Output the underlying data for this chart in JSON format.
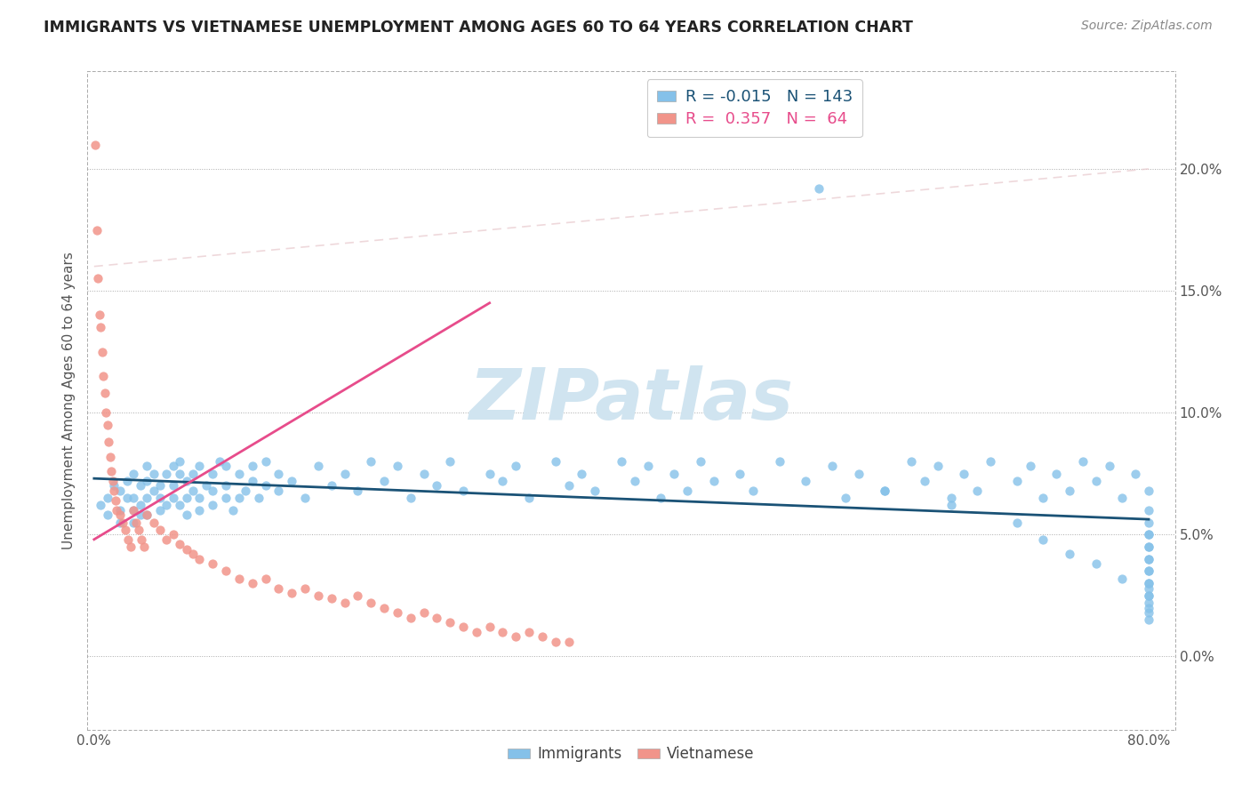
{
  "title": "IMMIGRANTS VS VIETNAMESE UNEMPLOYMENT AMONG AGES 60 TO 64 YEARS CORRELATION CHART",
  "source_text": "Source: ZipAtlas.com",
  "ylabel": "Unemployment Among Ages 60 to 64 years",
  "legend_R_immigrants": "-0.015",
  "legend_N_immigrants": "143",
  "legend_R_vietnamese": "0.357",
  "legend_N_vietnamese": "64",
  "immigrants_color": "#85c1e9",
  "vietnamese_color": "#f1948a",
  "immigrants_line_color": "#1a5276",
  "vietnamese_line_color": "#e74c8b",
  "background_color": "#ffffff",
  "watermark_text": "ZIPatlas",
  "watermark_color": "#d0e4f0",
  "xlim": [
    -0.005,
    0.82
  ],
  "ylim": [
    -0.03,
    0.24
  ],
  "yticks": [
    0.0,
    0.05,
    0.1,
    0.15,
    0.2
  ],
  "ytick_labels": [
    "0.0%",
    "5.0%",
    "10.0%",
    "15.0%",
    "20.0%"
  ],
  "xticks": [
    0.0,
    0.1,
    0.2,
    0.3,
    0.4,
    0.5,
    0.6,
    0.7,
    0.8
  ],
  "xtick_labels": [
    "0.0%",
    "",
    "",
    "",
    "",
    "",
    "",
    "",
    "80.0%"
  ],
  "imm_x": [
    0.005,
    0.01,
    0.01,
    0.015,
    0.02,
    0.02,
    0.02,
    0.025,
    0.025,
    0.03,
    0.03,
    0.03,
    0.03,
    0.035,
    0.035,
    0.035,
    0.04,
    0.04,
    0.04,
    0.04,
    0.045,
    0.045,
    0.05,
    0.05,
    0.05,
    0.055,
    0.055,
    0.06,
    0.06,
    0.06,
    0.065,
    0.065,
    0.065,
    0.07,
    0.07,
    0.07,
    0.075,
    0.075,
    0.08,
    0.08,
    0.08,
    0.085,
    0.09,
    0.09,
    0.09,
    0.095,
    0.1,
    0.1,
    0.1,
    0.105,
    0.11,
    0.11,
    0.115,
    0.12,
    0.12,
    0.125,
    0.13,
    0.13,
    0.14,
    0.14,
    0.15,
    0.16,
    0.17,
    0.18,
    0.19,
    0.2,
    0.21,
    0.22,
    0.23,
    0.24,
    0.25,
    0.26,
    0.27,
    0.28,
    0.3,
    0.31,
    0.32,
    0.33,
    0.35,
    0.36,
    0.37,
    0.38,
    0.4,
    0.41,
    0.42,
    0.43,
    0.44,
    0.45,
    0.46,
    0.47,
    0.49,
    0.5,
    0.52,
    0.54,
    0.56,
    0.57,
    0.58,
    0.6,
    0.62,
    0.63,
    0.64,
    0.65,
    0.66,
    0.67,
    0.68,
    0.7,
    0.71,
    0.72,
    0.73,
    0.74,
    0.75,
    0.76,
    0.77,
    0.78,
    0.79,
    0.8,
    0.55,
    0.6,
    0.65,
    0.7,
    0.72,
    0.74,
    0.76,
    0.78,
    0.8,
    0.8,
    0.8,
    0.8,
    0.8,
    0.8,
    0.8,
    0.8,
    0.8,
    0.8,
    0.8,
    0.8,
    0.8,
    0.8,
    0.8,
    0.8,
    0.8,
    0.8,
    0.8
  ],
  "imm_y": [
    0.062,
    0.058,
    0.065,
    0.07,
    0.06,
    0.055,
    0.068,
    0.072,
    0.065,
    0.06,
    0.055,
    0.065,
    0.075,
    0.07,
    0.062,
    0.058,
    0.065,
    0.072,
    0.058,
    0.078,
    0.068,
    0.075,
    0.06,
    0.07,
    0.065,
    0.075,
    0.062,
    0.065,
    0.078,
    0.07,
    0.075,
    0.062,
    0.08,
    0.065,
    0.072,
    0.058,
    0.068,
    0.075,
    0.06,
    0.078,
    0.065,
    0.07,
    0.062,
    0.075,
    0.068,
    0.08,
    0.065,
    0.07,
    0.078,
    0.06,
    0.075,
    0.065,
    0.068,
    0.072,
    0.078,
    0.065,
    0.07,
    0.08,
    0.068,
    0.075,
    0.072,
    0.065,
    0.078,
    0.07,
    0.075,
    0.068,
    0.08,
    0.072,
    0.078,
    0.065,
    0.075,
    0.07,
    0.08,
    0.068,
    0.075,
    0.072,
    0.078,
    0.065,
    0.08,
    0.07,
    0.075,
    0.068,
    0.08,
    0.072,
    0.078,
    0.065,
    0.075,
    0.068,
    0.08,
    0.072,
    0.075,
    0.068,
    0.08,
    0.072,
    0.078,
    0.065,
    0.075,
    0.068,
    0.08,
    0.072,
    0.078,
    0.065,
    0.075,
    0.068,
    0.08,
    0.072,
    0.078,
    0.065,
    0.075,
    0.068,
    0.08,
    0.072,
    0.078,
    0.065,
    0.075,
    0.068,
    0.192,
    0.068,
    0.062,
    0.055,
    0.048,
    0.042,
    0.038,
    0.032,
    0.028,
    0.022,
    0.018,
    0.05,
    0.045,
    0.04,
    0.035,
    0.03,
    0.025,
    0.02,
    0.015,
    0.06,
    0.055,
    0.05,
    0.045,
    0.04,
    0.035,
    0.03,
    0.025
  ],
  "viet_x": [
    0.001,
    0.002,
    0.003,
    0.004,
    0.005,
    0.006,
    0.007,
    0.008,
    0.009,
    0.01,
    0.011,
    0.012,
    0.013,
    0.014,
    0.015,
    0.016,
    0.017,
    0.02,
    0.022,
    0.024,
    0.026,
    0.028,
    0.03,
    0.032,
    0.034,
    0.036,
    0.038,
    0.04,
    0.045,
    0.05,
    0.055,
    0.06,
    0.065,
    0.07,
    0.075,
    0.08,
    0.09,
    0.1,
    0.11,
    0.12,
    0.13,
    0.14,
    0.15,
    0.16,
    0.17,
    0.18,
    0.19,
    0.2,
    0.21,
    0.22,
    0.23,
    0.24,
    0.25,
    0.26,
    0.27,
    0.28,
    0.29,
    0.3,
    0.31,
    0.32,
    0.33,
    0.34,
    0.35,
    0.36
  ],
  "viet_y": [
    0.21,
    0.175,
    0.155,
    0.14,
    0.135,
    0.125,
    0.115,
    0.108,
    0.1,
    0.095,
    0.088,
    0.082,
    0.076,
    0.072,
    0.068,
    0.064,
    0.06,
    0.058,
    0.055,
    0.052,
    0.048,
    0.045,
    0.06,
    0.055,
    0.052,
    0.048,
    0.045,
    0.058,
    0.055,
    0.052,
    0.048,
    0.05,
    0.046,
    0.044,
    0.042,
    0.04,
    0.038,
    0.035,
    0.032,
    0.03,
    0.032,
    0.028,
    0.026,
    0.028,
    0.025,
    0.024,
    0.022,
    0.025,
    0.022,
    0.02,
    0.018,
    0.016,
    0.018,
    0.016,
    0.014,
    0.012,
    0.01,
    0.012,
    0.01,
    0.008,
    0.01,
    0.008,
    0.006,
    0.006
  ]
}
